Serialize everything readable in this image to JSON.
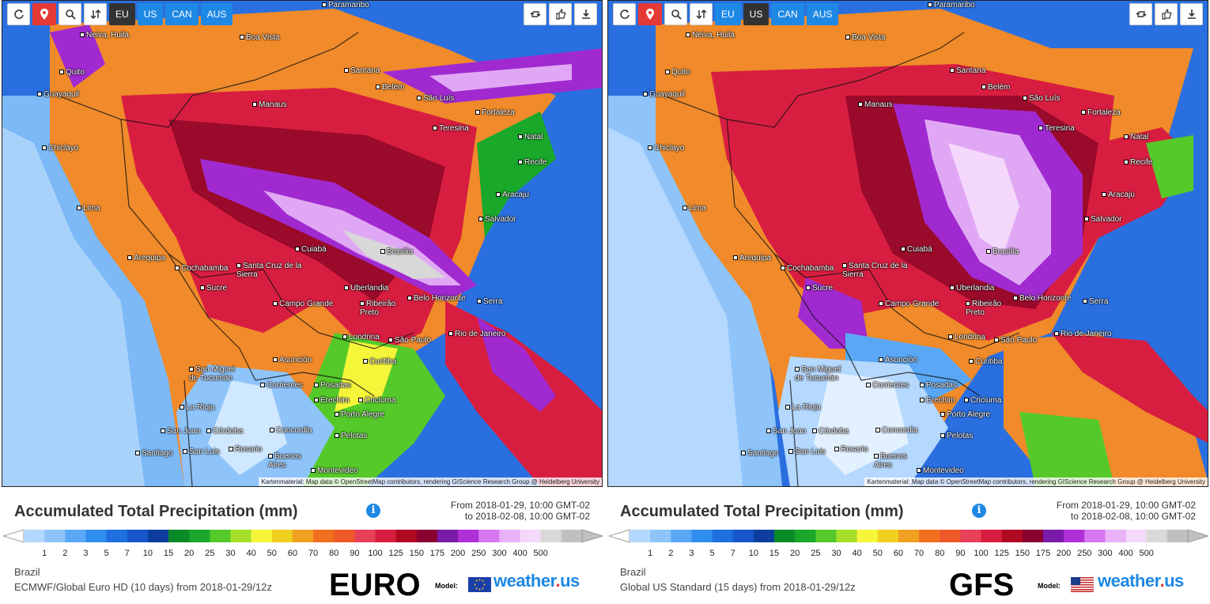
{
  "toolbar": {
    "regions": [
      "EU",
      "US",
      "CAN",
      "AUS"
    ]
  },
  "left": {
    "active_region": "EU",
    "map_label": "EURO",
    "model_desc": "ECMWF/Global Euro HD (10 days) from 2018-01-29/12z"
  },
  "right": {
    "active_region": "US",
    "map_label": "GFS",
    "model_desc": "Global US Standard (15 days) from 2018-01-29/12z"
  },
  "shared": {
    "legend_title": "Accumulated Total Precipitation (mm)",
    "date_from": "From 2018-01-29, 10:00 GMT-02",
    "date_to": "to 2018-02-08, 10:00 GMT-02",
    "region": "Brazil",
    "model_label": "Model:",
    "brand_main": "weather",
    "brand_dot": ".",
    "brand_suffix": "us",
    "attribution": "Kartenmaterial: Map data © OpenStreetMap contributors, rendering GIScience Research Group @ Heidelberg University"
  },
  "scale": {
    "ticks": [
      "1",
      "2",
      "3",
      "5",
      "7",
      "10",
      "15",
      "20",
      "25",
      "30",
      "40",
      "50",
      "60",
      "70",
      "80",
      "90",
      "100",
      "125",
      "150",
      "175",
      "200",
      "250",
      "300",
      "400",
      "500"
    ],
    "colors": [
      "#b5d8ff",
      "#8ec4fa",
      "#5aa8f5",
      "#2f8ded",
      "#1e6fe0",
      "#1556c8",
      "#0d3d9e",
      "#0b8a2a",
      "#19a82a",
      "#55c92a",
      "#a6e02a",
      "#f5f53a",
      "#f0d020",
      "#f0a020",
      "#f07020",
      "#ee5a2a",
      "#e8405a",
      "#d81e40",
      "#b00a20",
      "#8a0030",
      "#7a1aa8",
      "#b030d8",
      "#d878f0",
      "#eab0f8",
      "#f4d8fc",
      "#d8d8d8",
      "#c0c0c0"
    ]
  },
  "cities_left": [
    "Paramaribo",
    "Neiva, Huila",
    "Boa Vista",
    "Quito",
    "Santana",
    "Guayaquil",
    "Belém",
    "Manaus",
    "São Luís",
    "Fortaleza",
    "Teresina",
    "Chiclayo",
    "Natal",
    "Recife",
    "Aracaju",
    "Lima",
    "Salvador",
    "Cuiabá",
    "Brasília",
    "Arequipa",
    "Cochabamba",
    "Santa Cruz de la Sierra",
    "Sucre",
    "Uberlandia",
    "Belo Horizonte",
    "Campo Grande",
    "Ribeirão Preto",
    "Serra",
    "Londrina",
    "São Paulo",
    "Rio de Janeiro",
    "Asunción",
    "Curitiba",
    "San Miguel de Tucumán",
    "Corrientes",
    "Posadas",
    "Erechim",
    "Criciuma",
    "La Rioja",
    "Porto Alegre",
    "San Juan",
    "Córdoba",
    "Concordia",
    "Pelotas",
    "Santiago",
    "San Luis",
    "Rosario",
    "Buenos Aires",
    "Montevideo"
  ],
  "cities_right": [
    "Paramaribo",
    "Neiva, Huila",
    "Boa Vista",
    "Quito",
    "Santana",
    "Guayaquil",
    "Belém",
    "Manaus",
    "São Luís",
    "Fortaleza",
    "Teresina",
    "Chiclayo",
    "Natal",
    "Recife",
    "Aracaju",
    "Lima",
    "Salvador",
    "Cuiabá",
    "Brasília",
    "Arequipa",
    "Cochabamba",
    "Santa Cruz de la Sierra",
    "Sucre",
    "Uberlandia",
    "Belo Horizonte",
    "Campo Grande",
    "Ribeirão Preto",
    "Serra",
    "Londrina",
    "São Paulo",
    "Rio de Janeiro",
    "Asunción",
    "Curitiba",
    "San Miguel de Tucumán",
    "Corrientes",
    "Posadas",
    "Erechim",
    "Criciuma",
    "La Rioja",
    "Porto Alegre",
    "San Juan",
    "Córdoba",
    "Concordia",
    "Pelotas",
    "Santiago",
    "San Luis",
    "Rosario",
    "Buenos Aires",
    "Montevideo"
  ]
}
